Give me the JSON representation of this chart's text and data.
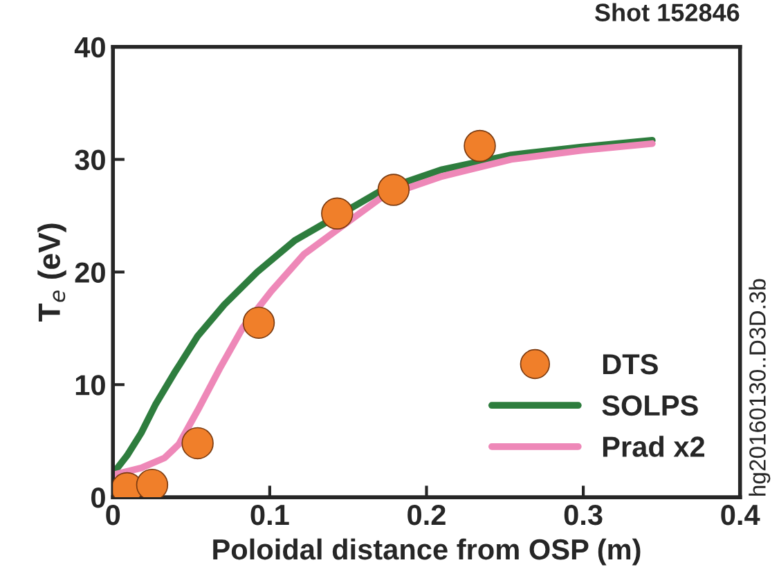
{
  "chart_data": {
    "type": "line",
    "xlabel": "Poloidal distance from OSP (m)",
    "ylabel": "T$_{e}$ (eV)",
    "xlim": [
      0,
      0.4
    ],
    "xticks": [
      0,
      0.1,
      0.2,
      0.3,
      0.4
    ],
    "ylim": [
      0,
      40
    ],
    "yticks": [
      0,
      10,
      20,
      30,
      40
    ],
    "grid": false,
    "legend": "bottom right",
    "annotations": [
      "Shot 152846",
      "hg20160130..D3D.3b"
    ],
    "series": [
      {
        "name": "DTS",
        "type": "scatter",
        "color": "#f07f2a",
        "marker": "circle",
        "x": [
          0.009,
          0.025,
          0.054,
          0.093,
          0.143,
          0.179,
          0.234
        ],
        "values": [
          0.8,
          1.1,
          4.8,
          15.5,
          25.2,
          27.3,
          31.2
        ]
      },
      {
        "name": "SOLPS",
        "color": "#2e7d3e",
        "line_style": "solid",
        "x": [
          0.0006,
          0.009,
          0.018,
          0.027,
          0.039,
          0.054,
          0.071,
          0.092,
          0.116,
          0.172,
          0.21,
          0.254,
          0.299,
          0.344
        ],
        "values": [
          2.2,
          3.7,
          5.7,
          8.2,
          11.0,
          14.3,
          17.1,
          20.0,
          22.8,
          27.3,
          29.1,
          30.4,
          31.1,
          31.7
        ]
      },
      {
        "name": "Prad x2",
        "color": "#ee88b8",
        "line_style": "solid",
        "x": [
          0.0006,
          0.018,
          0.033,
          0.042,
          0.054,
          0.068,
          0.083,
          0.101,
          0.122,
          0.172,
          0.21,
          0.254,
          0.299,
          0.344
        ],
        "values": [
          2.0,
          2.6,
          3.5,
          4.7,
          7.7,
          11.4,
          15.1,
          18.3,
          21.6,
          26.7,
          28.5,
          30.0,
          30.8,
          31.4
        ]
      }
    ]
  }
}
